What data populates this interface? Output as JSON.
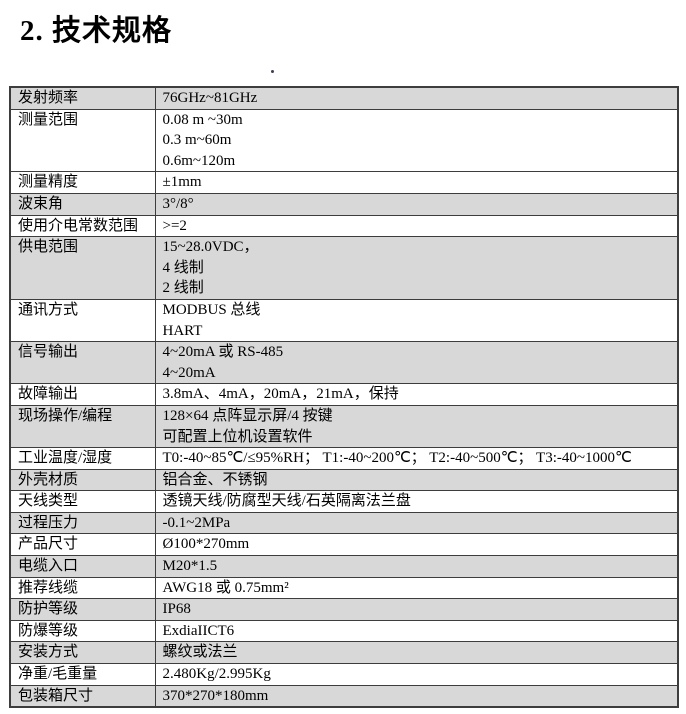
{
  "page": {
    "title": "2. 技术规格"
  },
  "colors": {
    "row_shade": "#d8d8d8",
    "table_border": "#3d3d3d",
    "text": "#000000",
    "stray_dot": "#3f3f55"
  },
  "spec_table": {
    "rows": [
      {
        "label": "发射频率",
        "values": [
          "76GHz~81GHz"
        ],
        "shaded": true
      },
      {
        "label": "测量范围",
        "values": [
          "0.08 m ~30m",
          "0.3 m~60m",
          "0.6m~120m"
        ],
        "shaded": false
      },
      {
        "label": "测量精度",
        "values": [
          "±1mm"
        ],
        "shaded": false
      },
      {
        "label": "波束角",
        "values": [
          "3°/8°"
        ],
        "shaded": true
      },
      {
        "label": "使用介电常数范围",
        "values": [
          ">=2"
        ],
        "shaded": false
      },
      {
        "label": "供电范围",
        "values": [
          "15~28.0VDC，",
          "4 线制",
          "2 线制"
        ],
        "shaded": true
      },
      {
        "label": "通讯方式",
        "values": [
          "MODBUS 总线",
          "HART"
        ],
        "shaded": false
      },
      {
        "label": "信号输出",
        "values": [
          "4~20mA 或 RS-485",
          "4~20mA"
        ],
        "shaded": true
      },
      {
        "label": "故障输出",
        "values": [
          "3.8mA、4mA，20mA，21mA，保持"
        ],
        "shaded": false
      },
      {
        "label": "现场操作/编程",
        "values": [
          "128×64 点阵显示屏/4 按键",
          "可配置上位机设置软件"
        ],
        "shaded": true
      },
      {
        "label": "工业温度/湿度",
        "values": [
          "T0:-40~85℃/≤95%RH； T1:-40~200℃； T2:-40~500℃； T3:-40~1000℃"
        ],
        "shaded": false
      },
      {
        "label": "外壳材质",
        "values": [
          "铝合金、不锈钢"
        ],
        "shaded": true
      },
      {
        "label": "天线类型",
        "values": [
          "透镜天线/防腐型天线/石英隔离法兰盘"
        ],
        "shaded": false
      },
      {
        "label": "过程压力",
        "values": [
          "-0.1~2MPa"
        ],
        "shaded": true
      },
      {
        "label": "产品尺寸",
        "values": [
          "Ø100*270mm"
        ],
        "shaded": false
      },
      {
        "label": "电缆入口",
        "values": [
          "M20*1.5"
        ],
        "shaded": true
      },
      {
        "label": "推荐线缆",
        "values": [
          "AWG18 或 0.75mm²"
        ],
        "shaded": false
      },
      {
        "label": "防护等级",
        "values": [
          "IP68"
        ],
        "shaded": true
      },
      {
        "label": "防爆等级",
        "values": [
          "ExdiaIICT6"
        ],
        "shaded": false
      },
      {
        "label": "安装方式",
        "values": [
          "螺纹或法兰"
        ],
        "shaded": true
      },
      {
        "label": "净重/毛重量",
        "values": [
          "2.480Kg/2.995Kg"
        ],
        "shaded": false
      },
      {
        "label": "包装箱尺寸",
        "values": [
          "370*270*180mm"
        ],
        "shaded": true
      }
    ]
  }
}
